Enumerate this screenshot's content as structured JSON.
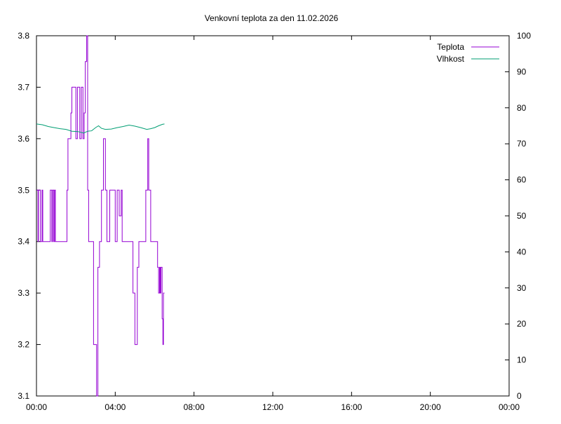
{
  "chart_data": {
    "type": "line",
    "title": "Venkovní teplota za den 11.02.2026",
    "x_ticks": [
      "00:00",
      "04:00",
      "08:00",
      "12:00",
      "16:00",
      "20:00",
      "00:00"
    ],
    "xlim_hours": [
      0,
      24
    ],
    "y_left": {
      "ylim": [
        3.1,
        3.8
      ],
      "ticks": [
        "3.1",
        "3.2",
        "3.3",
        "3.4",
        "3.5",
        "3.6",
        "3.7",
        "3.8"
      ]
    },
    "y_right": {
      "ylim": [
        0,
        100
      ],
      "ticks": [
        "0",
        "10",
        "20",
        "30",
        "40",
        "50",
        "60",
        "70",
        "80",
        "90",
        "100"
      ]
    },
    "legend_position": "top-right",
    "grid": false,
    "series": [
      {
        "name": "Teplota",
        "axis": "left",
        "color": "#9400d3",
        "step": true,
        "x": [
          0.0,
          0.08,
          0.1,
          0.2,
          0.28,
          0.32,
          0.4,
          0.7,
          0.78,
          0.82,
          0.88,
          0.92,
          0.96,
          1.05,
          1.25,
          1.55,
          1.6,
          1.65,
          1.75,
          1.8,
          2.0,
          2.08,
          2.2,
          2.28,
          2.36,
          2.42,
          2.48,
          2.55,
          2.6,
          2.65,
          2.75,
          2.9,
          3.05,
          3.12,
          3.2,
          3.3,
          3.4,
          3.5,
          3.58,
          3.72,
          3.9,
          4.0,
          4.1,
          4.2,
          4.3,
          4.35,
          4.45,
          4.55,
          4.9,
          5.0,
          5.12,
          5.2,
          5.4,
          5.55,
          5.65,
          5.7,
          5.8,
          5.85,
          5.9,
          6.1,
          6.15,
          6.2,
          6.25,
          6.28,
          6.32,
          6.38,
          6.42,
          6.45,
          6.5
        ],
        "values": [
          3.5,
          3.4,
          3.5,
          3.4,
          3.5,
          3.4,
          3.4,
          3.5,
          3.4,
          3.5,
          3.4,
          3.5,
          3.4,
          3.4,
          3.4,
          3.5,
          3.6,
          3.6,
          3.65,
          3.7,
          3.6,
          3.7,
          3.6,
          3.7,
          3.6,
          3.65,
          3.75,
          3.8,
          3.5,
          3.4,
          3.4,
          3.2,
          3.1,
          3.35,
          3.4,
          3.5,
          3.6,
          3.5,
          3.4,
          3.5,
          3.5,
          3.4,
          3.5,
          3.45,
          3.5,
          3.4,
          3.4,
          3.4,
          3.3,
          3.2,
          3.35,
          3.4,
          3.4,
          3.5,
          3.6,
          3.5,
          3.4,
          3.4,
          3.4,
          3.4,
          3.35,
          3.3,
          3.35,
          3.3,
          3.35,
          3.25,
          3.2,
          3.3,
          3.3
        ]
      },
      {
        "name": "Vlhkost",
        "axis": "right",
        "color": "#009e73",
        "step": false,
        "x": [
          0.0,
          0.3,
          0.6,
          0.9,
          1.2,
          1.5,
          1.8,
          2.1,
          2.4,
          2.6,
          2.8,
          3.0,
          3.15,
          3.3,
          3.5,
          3.8,
          4.1,
          4.4,
          4.7,
          5.0,
          5.3,
          5.6,
          5.8,
          6.0,
          6.2,
          6.4,
          6.5
        ],
        "values": [
          75.5,
          75.3,
          74.8,
          74.5,
          74.2,
          74.0,
          73.5,
          73.4,
          73.0,
          73.5,
          73.6,
          74.5,
          75.0,
          74.3,
          74.0,
          74.1,
          74.5,
          74.8,
          75.2,
          74.9,
          74.5,
          74.0,
          74.2,
          74.5,
          75.0,
          75.4,
          75.5
        ]
      }
    ]
  }
}
